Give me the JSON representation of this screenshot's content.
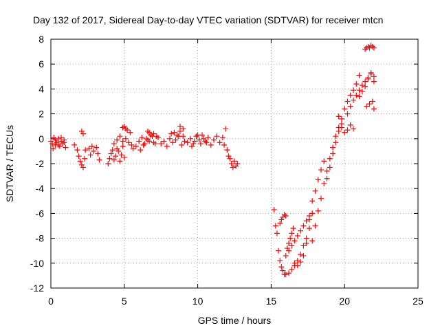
{
  "chart_data": {
    "type": "scatter",
    "title": "Day 132 of 2017, Sidereal Day-to-day VTEC variation (SDTVAR) for receiver mtcn",
    "xlabel": "GPS time / hours",
    "ylabel": "SDTVAR / TECUs",
    "xlim": [
      0,
      25
    ],
    "ylim": [
      -12,
      8
    ],
    "xticks": [
      0,
      5,
      10,
      15,
      20,
      25
    ],
    "yticks": [
      -12,
      -10,
      -8,
      -6,
      -4,
      -2,
      0,
      2,
      4,
      6,
      8
    ],
    "grid": true,
    "marker": "+",
    "color": "#ff0000",
    "series": [
      {
        "name": "SDTVAR",
        "x": [
          0.0,
          0.1,
          0.2,
          0.3,
          0.4,
          0.5,
          0.6,
          0.7,
          0.8,
          0.9,
          1.0,
          0.15,
          0.3,
          0.5,
          0.7,
          0.9,
          1.6,
          1.8,
          1.9,
          2.0,
          2.1,
          2.2,
          2.3,
          2.35,
          2.1,
          2.2,
          2.6,
          2.7,
          2.8,
          2.9,
          3.1,
          3.2,
          3.3,
          3.9,
          4.0,
          4.1,
          4.2,
          4.3,
          4.4,
          4.5,
          4.6,
          4.7,
          4.8,
          4.9,
          5.0,
          4.3,
          4.5,
          4.7,
          4.9,
          5.1,
          5.3,
          5.5,
          4.9,
          5.0,
          5.1,
          5.2,
          5.4,
          5.6,
          5.8,
          6.0,
          6.2,
          6.4,
          6.6,
          6.8,
          7.0,
          6.1,
          6.3,
          6.5,
          6.7,
          6.9,
          7.1,
          7.3,
          6.6,
          6.7,
          6.8,
          7.0,
          7.2,
          7.5,
          7.7,
          7.9,
          8.1,
          8.3,
          8.5,
          8.7,
          8.9,
          9.1,
          8.2,
          8.4,
          8.6,
          8.8,
          9.0,
          8.8,
          9.0,
          9.3,
          9.5,
          9.7,
          9.9,
          10.1,
          10.3,
          10.5,
          10.7,
          10.9,
          11.1,
          11.3,
          11.5,
          11.7,
          9.6,
          9.8,
          10.0,
          10.2,
          10.4,
          10.6,
          11.8,
          12.0,
          12.1,
          12.2,
          12.3,
          12.4,
          12.5,
          12.6,
          12.7,
          11.9,
          15.2,
          15.3,
          15.4,
          15.5,
          15.6,
          15.7,
          15.8,
          15.9,
          16.0,
          16.2,
          16.4,
          16.6,
          16.8,
          17.0,
          17.2,
          17.4,
          17.6,
          17.8,
          15.6,
          15.7,
          15.8,
          15.9,
          16.0,
          16.1,
          16.2,
          16.3,
          16.4,
          16.5,
          16.0,
          16.2,
          16.4,
          16.6,
          16.8,
          17.0,
          17.2,
          17.4,
          17.6,
          16.6,
          16.8,
          17.0,
          17.2,
          17.4,
          17.6,
          17.8,
          18.0,
          18.2,
          18.4,
          18.6,
          17.8,
          18.0,
          18.2,
          18.4,
          18.6,
          18.8,
          19.0,
          19.2,
          19.4,
          19.6,
          19.8,
          18.8,
          19.0,
          19.2,
          19.4,
          19.6,
          19.8,
          20.0,
          20.2,
          20.4,
          20.6,
          20.8,
          21.0,
          19.6,
          19.8,
          20.0,
          20.2,
          20.4,
          20.6,
          20.2,
          20.4,
          20.6,
          20.8,
          21.0,
          21.2,
          21.4,
          21.6,
          21.8,
          22.0,
          21.0,
          21.2,
          21.4,
          21.6,
          21.8,
          22.0,
          21.5,
          21.7,
          21.9,
          22.0,
          21.4,
          21.5,
          21.6,
          21.7,
          21.8,
          21.9,
          22.0
        ],
        "y": [
          -0.2,
          -0.4,
          0.1,
          -0.5,
          -0.3,
          0.0,
          -0.6,
          -0.2,
          -0.4,
          -0.1,
          -0.7,
          -0.8,
          -0.1,
          -0.5,
          0.1,
          -0.3,
          -0.5,
          -0.9,
          -1.4,
          -1.8,
          -2.1,
          -2.3,
          -1.6,
          -0.9,
          0.6,
          0.4,
          -0.8,
          -1.3,
          -0.6,
          -1.0,
          -0.7,
          -1.2,
          -1.7,
          -2.0,
          -1.6,
          -1.2,
          -0.9,
          -1.7,
          -1.4,
          -0.8,
          -1.0,
          -1.8,
          -1.3,
          -0.6,
          -1.5,
          -0.4,
          -0.1,
          0.2,
          -0.2,
          0.0,
          -0.3,
          -0.5,
          0.9,
          1.0,
          0.8,
          0.7,
          0.5,
          -0.8,
          -0.6,
          -0.2,
          0.1,
          -0.4,
          -0.1,
          0.3,
          -0.3,
          -0.9,
          -0.5,
          0.0,
          -0.2,
          0.2,
          -0.4,
          0.1,
          0.6,
          0.5,
          0.3,
          0.4,
          0.2,
          -0.4,
          -0.2,
          -0.6,
          0.0,
          -0.3,
          -0.1,
          0.2,
          -0.5,
          -0.2,
          0.4,
          0.5,
          0.3,
          0.6,
          0.2,
          1.0,
          0.8,
          -0.3,
          0.0,
          -0.4,
          0.2,
          -0.1,
          0.3,
          -0.2,
          0.1,
          -0.5,
          -0.1,
          0.2,
          -0.3,
          0.1,
          -0.6,
          -0.2,
          0.3,
          -0.4,
          0.0,
          -0.3,
          -0.5,
          -0.9,
          -1.4,
          -1.6,
          -2.0,
          -2.3,
          -1.8,
          -2.2,
          -2.0,
          0.8,
          -5.7,
          -7.0,
          -7.6,
          -9.0,
          -9.8,
          -10.3,
          -10.6,
          -10.9,
          -10.9,
          -10.8,
          -10.5,
          -10.2,
          -9.8,
          -9.3,
          -8.6,
          -8.0,
          -7.2,
          -6.0,
          -6.8,
          -6.5,
          -6.3,
          -6.1,
          -6.2,
          -8.8,
          -8.4,
          -8.0,
          -7.6,
          -7.2,
          -9.4,
          -9.0,
          -8.6,
          -8.2,
          -7.8,
          -7.4,
          -7.0,
          -6.6,
          -6.2,
          -10.0,
          -10.2,
          -9.9,
          -9.4,
          -8.4,
          -6.5,
          -5.0,
          -4.2,
          -3.3,
          -2.5,
          -1.8,
          -8.2,
          -7.0,
          -5.8,
          -4.8,
          -3.6,
          -2.6,
          -1.6,
          -0.7,
          0.2,
          0.9,
          1.6,
          -3.2,
          -2.3,
          -1.2,
          -0.3,
          0.6,
          1.2,
          2.4,
          3.0,
          3.5,
          3.9,
          4.4,
          5.1,
          1.8,
          0.9,
          0.5,
          0.7,
          1.1,
          0.8,
          2.0,
          2.6,
          3.1,
          3.5,
          3.9,
          4.3,
          4.6,
          4.9,
          5.2,
          5.0,
          3.4,
          3.8,
          4.2,
          4.8,
          5.3,
          4.6,
          2.6,
          2.8,
          3.0,
          2.4,
          7.2,
          7.3,
          7.4,
          7.3,
          7.5,
          7.4,
          7.3
        ]
      }
    ]
  }
}
